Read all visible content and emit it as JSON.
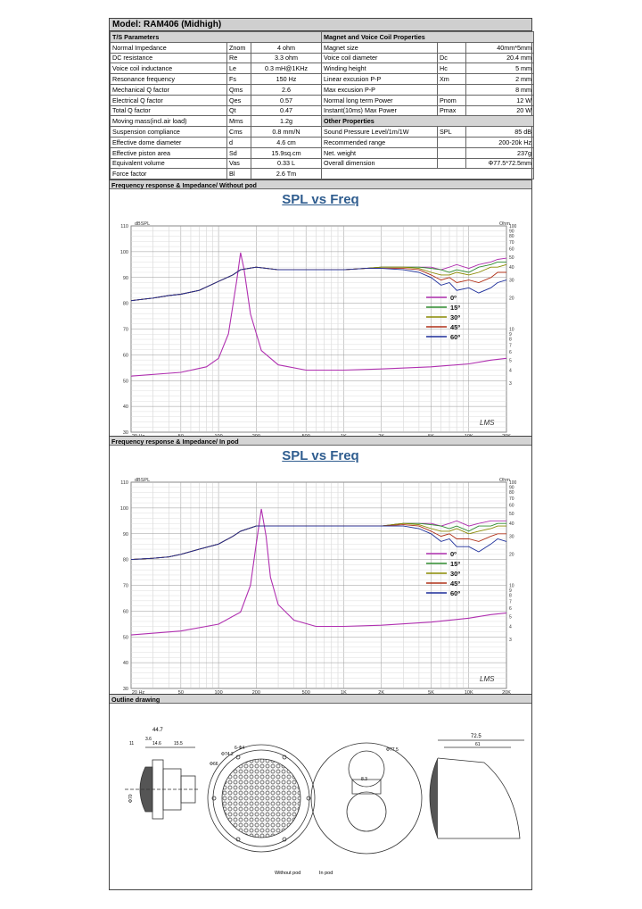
{
  "model": "Model: RAM406 (Midhigh)",
  "ts_header": "T/S Parameters",
  "mag_header": "Magnet and Voice Coil Properties",
  "other_header": "Other Properties",
  "ts_params": [
    {
      "name": "Normal Impedance",
      "sym": "Znom",
      "val": "4 ohm"
    },
    {
      "name": "DC resistance",
      "sym": "Re",
      "val": "3.3 ohm"
    },
    {
      "name": "Voice coil inductance",
      "sym": "Le",
      "val": "0.3 mH@1KHz"
    },
    {
      "name": "Resonance frequency",
      "sym": "Fs",
      "val": "150 Hz"
    },
    {
      "name": "Mechanical Q factor",
      "sym": "Qms",
      "val": "2.6"
    },
    {
      "name": "Electrical Q factor",
      "sym": "Qes",
      "val": "0.57"
    },
    {
      "name": "Total Q factor",
      "sym": "Qt",
      "val": "0.47"
    },
    {
      "name": "Moving mass(incl.air load)",
      "sym": "Mms",
      "val": "1.2g"
    },
    {
      "name": "Suspension compliance",
      "sym": "Cms",
      "val": "0.8 mm/N"
    },
    {
      "name": "Effective dome diameter",
      "sym": "d",
      "val": "4.6 cm"
    },
    {
      "name": "Effective piston area",
      "sym": "Sd",
      "val": "15.9sq.cm"
    },
    {
      "name": "Equivalent volume",
      "sym": "Vas",
      "val": "0.33 L"
    },
    {
      "name": "Force factor",
      "sym": "Bl",
      "val": "2.6 Tm"
    }
  ],
  "mag_params": [
    {
      "name": "Magnet size",
      "sym": "",
      "val": "40mm*5mm"
    },
    {
      "name": "Voice coil diameter",
      "sym": "Dc",
      "val": "20.4 mm"
    },
    {
      "name": "Winding height",
      "sym": "Hc",
      "val": "5 mm"
    },
    {
      "name": "Linear excusion P-P",
      "sym": "Xm",
      "val": "2 mm"
    },
    {
      "name": "Max excusion P-P",
      "sym": "",
      "val": "8 mm"
    },
    {
      "name": "Normal long term Power",
      "sym": "Pnom",
      "val": "12 W"
    },
    {
      "name": "Instant(10ms) Max Power",
      "sym": "Pmax",
      "val": "20 W"
    }
  ],
  "other_params": [
    {
      "name": "Sound Pressure Level/1m/1W",
      "sym": "SPL",
      "val": "85 dB"
    },
    {
      "name": "Recommended range",
      "sym": "",
      "val": "200-20k Hz"
    },
    {
      "name": "Net. weight",
      "sym": "",
      "val": "237g"
    },
    {
      "name": "Overall dimension",
      "sym": "",
      "val": "Φ77.5*72.5mm"
    }
  ],
  "sec1": "Frequency response & Impedance/ Without pod",
  "sec2": "Frequency response & Impedance/ In pod",
  "sec3": "Outline drawing",
  "chart_title": "SPL vs Freq",
  "yl_unit": "dBSPL",
  "yr_unit": "Ohm",
  "logo": "LMS",
  "drawing_labels": {
    "d447": "44.7",
    "d36": "3.6",
    "d11": "11",
    "d146": "14.6",
    "d155": "15.5",
    "d742": "Φ74.2",
    "d624": "6-Φ4",
    "d66": "Φ66",
    "d70": "Φ70",
    "d775": "Φ77.5",
    "d725": "72.5",
    "d61": "61",
    "d83": "8.3",
    "without_pod": "Without pod",
    "in_pod": "In pod"
  },
  "chart_data": [
    {
      "type": "line",
      "title": "SPL vs Freq",
      "xscale": "log",
      "xlim": [
        20,
        20000
      ],
      "ylim": [
        30,
        110
      ],
      "y2lim": [
        0,
        100
      ],
      "ylabel": "dBSPL",
      "y2label": "Ohm",
      "xticks": [
        "20 Hz",
        "50",
        "100",
        "200",
        "500",
        "1K",
        "2K",
        "5K",
        "10K",
        "20K"
      ],
      "yticks": [
        30,
        40,
        50,
        60,
        70,
        80,
        90,
        100,
        110
      ],
      "y2ticks": [
        3,
        4,
        5,
        6,
        7,
        8,
        9,
        10,
        20,
        30,
        40,
        50,
        60,
        70,
        80,
        90,
        100
      ],
      "legend": [
        "0º",
        "15º",
        "30º",
        "45º",
        "60º"
      ],
      "colors": [
        "#b030b0",
        "#2e8b2e",
        "#8a8a00",
        "#b03018",
        "#1c2d9a"
      ],
      "x": [
        20,
        30,
        40,
        50,
        70,
        100,
        130,
        150,
        200,
        300,
        500,
        700,
        1000,
        1500,
        2000,
        3000,
        4000,
        5000,
        6000,
        7000,
        8000,
        10000,
        12000,
        15000,
        17000,
        20000
      ],
      "series": [
        {
          "name": "0º",
          "values": [
            81,
            82,
            83,
            83.5,
            85,
            88.5,
            91,
            93,
            94,
            93,
            93,
            93,
            93,
            93.5,
            94,
            94,
            94,
            94,
            93,
            94,
            95,
            93.5,
            95,
            96,
            97,
            97.5
          ]
        },
        {
          "name": "15º",
          "values": [
            81,
            82,
            83,
            83.5,
            85,
            88.5,
            91,
            93,
            94,
            93,
            93,
            93,
            93,
            93.5,
            94,
            94,
            94,
            93.5,
            93,
            92,
            93,
            92,
            94,
            95,
            96,
            96
          ]
        },
        {
          "name": "30º",
          "values": [
            81,
            82,
            83,
            83.5,
            85,
            88.5,
            91,
            93,
            94,
            93,
            93,
            93,
            93,
            93.5,
            94,
            94,
            93.5,
            92,
            91,
            91,
            92,
            91,
            92,
            94,
            94,
            95
          ]
        },
        {
          "name": "45º",
          "values": [
            81,
            82,
            83,
            83.5,
            85,
            88.5,
            91,
            93,
            94,
            93,
            93,
            93,
            93,
            93.5,
            93.5,
            93.5,
            93,
            91,
            89,
            90,
            88,
            89,
            88,
            90,
            92,
            92
          ]
        },
        {
          "name": "60º",
          "values": [
            81,
            82,
            83,
            83.5,
            85,
            88.5,
            91,
            93,
            94,
            93,
            93,
            93,
            93,
            93.5,
            93.5,
            93,
            92,
            90,
            87,
            88,
            85,
            86,
            84,
            86,
            88,
            89
          ]
        }
      ],
      "impedance": {
        "name": "Impedance",
        "x": [
          20,
          50,
          80,
          100,
          120,
          140,
          150,
          160,
          180,
          220,
          300,
          500,
          1000,
          2000,
          5000,
          10000,
          15000,
          20000
        ],
        "values": [
          3.5,
          3.8,
          4.3,
          5.2,
          9,
          30,
          55,
          38,
          14,
          6.2,
          4.5,
          4.0,
          4.0,
          4.1,
          4.3,
          4.6,
          5.0,
          5.2
        ]
      }
    },
    {
      "type": "line",
      "title": "SPL vs Freq",
      "xscale": "log",
      "xlim": [
        20,
        20000
      ],
      "ylim": [
        30,
        110
      ],
      "y2lim": [
        0,
        100
      ],
      "ylabel": "dBSPL",
      "y2label": "Ohm",
      "xticks": [
        "20 Hz",
        "50",
        "100",
        "200",
        "500",
        "1K",
        "2K",
        "5K",
        "10K",
        "20K"
      ],
      "yticks": [
        30,
        40,
        50,
        60,
        70,
        80,
        90,
        100,
        110
      ],
      "y2ticks": [
        3,
        4,
        5,
        6,
        7,
        8,
        9,
        10,
        20,
        30,
        40,
        50,
        60,
        70,
        80,
        90,
        100
      ],
      "legend": [
        "0º",
        "15º",
        "30º",
        "45º",
        "60º"
      ],
      "colors": [
        "#b030b0",
        "#2e8b2e",
        "#8a8a00",
        "#b03018",
        "#1c2d9a"
      ],
      "x": [
        20,
        30,
        40,
        50,
        70,
        100,
        130,
        150,
        200,
        300,
        500,
        700,
        1000,
        1500,
        2000,
        3000,
        4000,
        5000,
        6000,
        7000,
        8000,
        10000,
        12000,
        15000,
        17000,
        20000
      ],
      "series": [
        {
          "name": "0º",
          "values": [
            80,
            80.5,
            81,
            82,
            84,
            86,
            89,
            91,
            93,
            93,
            93,
            93,
            93,
            93,
            93,
            94,
            94,
            94,
            93,
            94,
            95,
            93,
            94,
            95,
            95,
            95
          ]
        },
        {
          "name": "15º",
          "values": [
            80,
            80.5,
            81,
            82,
            84,
            86,
            89,
            91,
            93,
            93,
            93,
            93,
            93,
            93,
            93,
            94,
            94,
            93.5,
            93,
            92,
            93,
            91,
            93,
            93,
            94,
            94
          ]
        },
        {
          "name": "30º",
          "values": [
            80,
            80.5,
            81,
            82,
            84,
            86,
            89,
            91,
            93,
            93,
            93,
            93,
            93,
            93,
            93,
            94,
            93.5,
            92,
            91,
            91,
            92,
            90,
            91,
            92,
            93,
            93
          ]
        },
        {
          "name": "45º",
          "values": [
            80,
            80.5,
            81,
            82,
            84,
            86,
            89,
            91,
            93,
            93,
            93,
            93,
            93,
            93,
            93,
            93.5,
            93,
            91,
            89,
            90,
            88,
            88,
            87,
            89,
            90,
            90
          ]
        },
        {
          "name": "60º",
          "values": [
            80,
            80.5,
            81,
            82,
            84,
            86,
            89,
            91,
            93,
            93,
            93,
            93,
            93,
            93,
            93,
            93,
            92,
            90,
            87,
            88,
            85,
            85,
            83,
            86,
            88,
            87
          ]
        }
      ],
      "impedance": {
        "name": "Impedance",
        "x": [
          20,
          50,
          100,
          150,
          180,
          200,
          220,
          240,
          260,
          300,
          400,
          600,
          1000,
          2000,
          5000,
          10000,
          15000,
          20000
        ],
        "values": [
          3.3,
          3.6,
          4.2,
          5.5,
          10,
          25,
          55,
          30,
          12,
          6.5,
          4.6,
          4.0,
          4.0,
          4.1,
          4.4,
          4.8,
          5.2,
          5.4
        ]
      }
    }
  ]
}
